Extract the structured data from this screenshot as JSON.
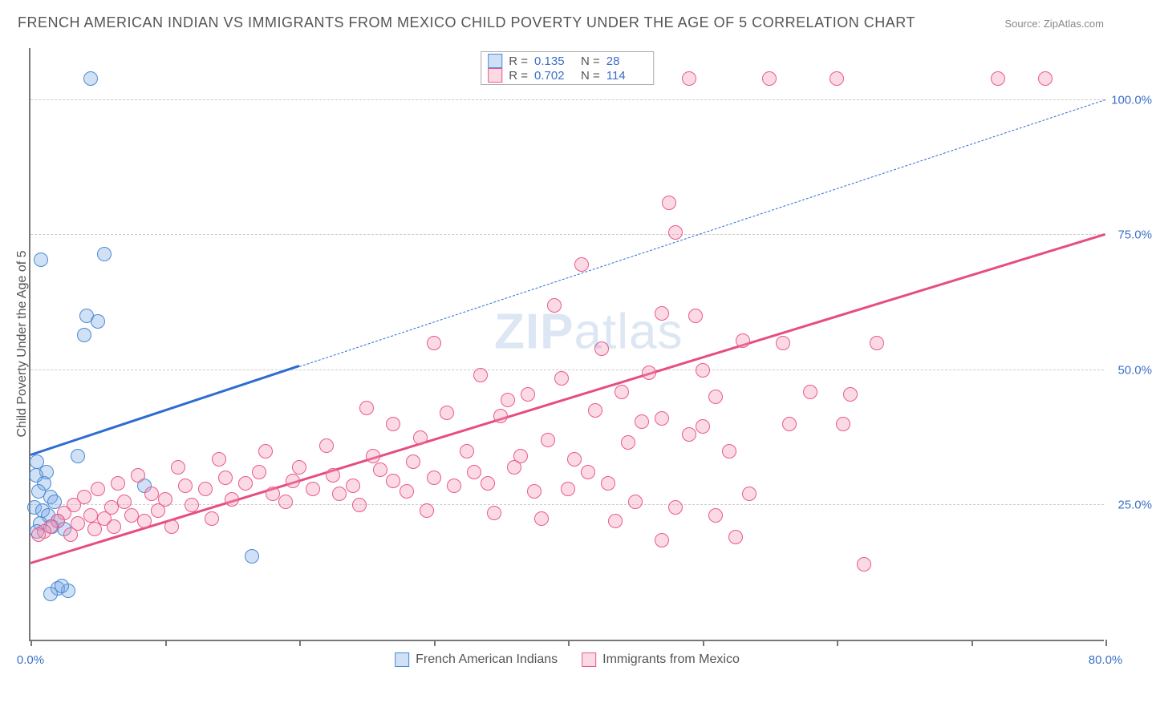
{
  "title": "FRENCH AMERICAN INDIAN VS IMMIGRANTS FROM MEXICO CHILD POVERTY UNDER THE AGE OF 5 CORRELATION CHART",
  "source_label": "Source:",
  "source_name": "ZipAtlas.com",
  "y_axis_title": "Child Poverty Under the Age of 5",
  "watermark_bold": "ZIP",
  "watermark_rest": "atlas",
  "chart": {
    "type": "scatter",
    "xlim": [
      0,
      80
    ],
    "ylim": [
      0,
      110
    ],
    "x_ticks": [
      0,
      10,
      20,
      30,
      40,
      50,
      60,
      70,
      80
    ],
    "x_tick_labels": {
      "0": "0.0%",
      "80": "80.0%"
    },
    "y_gridlines": [
      25,
      50,
      75,
      100
    ],
    "y_tick_labels": {
      "25": "25.0%",
      "50": "50.0%",
      "75": "75.0%",
      "100": "100.0%"
    },
    "background_color": "#ffffff",
    "grid_color": "#cccccc",
    "axis_color": "#777777",
    "label_color": "#3b6fc9",
    "point_radius": 9,
    "point_stroke_width": 1.5,
    "series": [
      {
        "id": "blue",
        "name": "French American Indians",
        "fill": "rgba(120,170,230,0.35)",
        "stroke": "#4a8ad4",
        "R_label": "R  =",
        "R": "0.135",
        "N_label": "N  =",
        "N": "28",
        "trend": {
          "color": "#2d6cd0",
          "width": 3,
          "solid_from": [
            0,
            34
          ],
          "solid_to": [
            20,
            50.5
          ],
          "dashed_to": [
            80,
            100
          ]
        },
        "points": [
          [
            4.5,
            104
          ],
          [
            0.8,
            70.5
          ],
          [
            5.5,
            71.5
          ],
          [
            4.2,
            60
          ],
          [
            5.0,
            59
          ],
          [
            4.0,
            56.5
          ],
          [
            3.5,
            34
          ],
          [
            0.5,
            33
          ],
          [
            1.2,
            31
          ],
          [
            0.4,
            30.5
          ],
          [
            1.0,
            29
          ],
          [
            0.6,
            27.5
          ],
          [
            1.5,
            26.5
          ],
          [
            1.8,
            25.5
          ],
          [
            0.3,
            24.5
          ],
          [
            0.9,
            24
          ],
          [
            1.3,
            23
          ],
          [
            2.0,
            22
          ],
          [
            0.7,
            21.5
          ],
          [
            1.6,
            21
          ],
          [
            2.5,
            20.5
          ],
          [
            0.5,
            20
          ],
          [
            8.5,
            28.5
          ],
          [
            16.5,
            15.5
          ],
          [
            2.0,
            9.5
          ],
          [
            2.8,
            9
          ],
          [
            1.5,
            8.5
          ],
          [
            2.3,
            10
          ]
        ]
      },
      {
        "id": "pink",
        "name": "Immigrants from Mexico",
        "fill": "rgba(245,150,180,0.35)",
        "stroke": "#e85a8a",
        "R_label": "R  =",
        "R": "0.702",
        "N_label": "N  =",
        "N": "114",
        "trend": {
          "color": "#e64d82",
          "width": 3,
          "solid_from": [
            0,
            14
          ],
          "solid_to": [
            80,
            75
          ],
          "dashed_to": null
        },
        "points": [
          [
            49,
            104
          ],
          [
            55,
            104
          ],
          [
            60,
            104
          ],
          [
            72,
            104
          ],
          [
            75.5,
            104
          ],
          [
            47.5,
            81
          ],
          [
            41,
            69.5
          ],
          [
            48,
            75.5
          ],
          [
            39,
            62
          ],
          [
            47,
            60.5
          ],
          [
            49.5,
            60
          ],
          [
            30,
            55
          ],
          [
            42.5,
            54
          ],
          [
            53,
            55.5
          ],
          [
            56,
            55
          ],
          [
            63,
            55
          ],
          [
            46,
            49.5
          ],
          [
            33.5,
            49
          ],
          [
            39.5,
            48.5
          ],
          [
            50,
            50
          ],
          [
            37,
            45.5
          ],
          [
            44,
            46
          ],
          [
            51,
            45
          ],
          [
            58,
            46
          ],
          [
            61,
            45.5
          ],
          [
            25,
            43
          ],
          [
            31,
            42
          ],
          [
            35,
            41.5
          ],
          [
            42,
            42.5
          ],
          [
            47,
            41
          ],
          [
            50,
            39.5
          ],
          [
            56.5,
            40
          ],
          [
            60.5,
            40
          ],
          [
            49,
            38
          ],
          [
            44.5,
            36.5
          ],
          [
            38.5,
            37
          ],
          [
            29,
            37.5
          ],
          [
            22,
            36
          ],
          [
            17.5,
            35
          ],
          [
            14,
            33.5
          ],
          [
            11,
            32
          ],
          [
            8,
            30.5
          ],
          [
            6.5,
            29
          ],
          [
            5,
            28
          ],
          [
            4,
            26.5
          ],
          [
            3.2,
            25
          ],
          [
            2.5,
            23.5
          ],
          [
            2,
            22
          ],
          [
            1.5,
            21
          ],
          [
            1,
            20
          ],
          [
            0.6,
            19.5
          ],
          [
            3.5,
            21.5
          ],
          [
            5.5,
            22.5
          ],
          [
            7.5,
            23
          ],
          [
            9.5,
            24
          ],
          [
            12,
            25
          ],
          [
            15,
            26
          ],
          [
            18,
            27
          ],
          [
            21,
            28
          ],
          [
            24,
            28.5
          ],
          [
            27,
            29.5
          ],
          [
            30,
            30
          ],
          [
            33,
            31
          ],
          [
            36,
            32
          ],
          [
            19.5,
            29.5
          ],
          [
            22.5,
            30.5
          ],
          [
            26,
            31.5
          ],
          [
            13,
            28
          ],
          [
            16,
            29
          ],
          [
            10,
            26
          ],
          [
            6,
            24.5
          ],
          [
            4.5,
            23
          ],
          [
            7,
            25.5
          ],
          [
            9,
            27
          ],
          [
            11.5,
            28.5
          ],
          [
            14.5,
            30
          ],
          [
            17,
            31
          ],
          [
            20,
            32
          ],
          [
            23,
            27
          ],
          [
            28,
            27.5
          ],
          [
            31.5,
            28.5
          ],
          [
            34,
            29
          ],
          [
            37.5,
            27.5
          ],
          [
            40,
            28
          ],
          [
            43,
            29
          ],
          [
            28.5,
            33
          ],
          [
            25.5,
            34
          ],
          [
            32.5,
            35
          ],
          [
            36.5,
            34
          ],
          [
            40.5,
            33.5
          ],
          [
            45,
            25.5
          ],
          [
            48,
            24.5
          ],
          [
            51,
            23
          ],
          [
            53.5,
            27
          ],
          [
            43.5,
            22
          ],
          [
            38,
            22.5
          ],
          [
            34.5,
            23.5
          ],
          [
            29.5,
            24
          ],
          [
            24.5,
            25
          ],
          [
            19,
            25.5
          ],
          [
            13.5,
            22.5
          ],
          [
            10.5,
            21
          ],
          [
            8.5,
            22
          ],
          [
            6.2,
            21
          ],
          [
            4.8,
            20.5
          ],
          [
            3.0,
            19.5
          ],
          [
            45.5,
            40.5
          ],
          [
            52,
            35
          ],
          [
            41.5,
            31
          ],
          [
            35.5,
            44.5
          ],
          [
            47,
            18.5
          ],
          [
            52.5,
            19
          ],
          [
            62,
            14
          ],
          [
            27,
            40
          ]
        ]
      }
    ]
  }
}
